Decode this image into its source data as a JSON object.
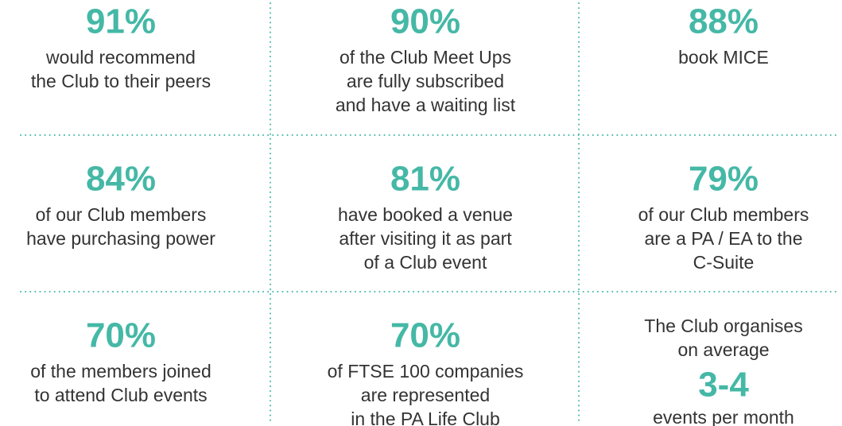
{
  "cells": [
    {
      "stat": "91%",
      "lines": [
        "would recommend",
        "the Club to their peers"
      ]
    },
    {
      "stat": "90%",
      "lines": [
        "of the Club Meet Ups",
        "are fully subscribed",
        "and have a waiting list"
      ]
    },
    {
      "stat": "88%",
      "lines": [
        "book MICE"
      ]
    },
    {
      "stat": "84%",
      "lines": [
        "of our Club members",
        "have purchasing power"
      ]
    },
    {
      "stat": "81%",
      "lines": [
        "have booked a venue",
        "after visiting it as part",
        "of a Club event"
      ]
    },
    {
      "stat": "79%",
      "lines": [
        "of our Club members",
        "are a PA / EA to the",
        "C-Suite"
      ]
    },
    {
      "stat": "70%",
      "lines": [
        "of the members joined",
        "to attend Club events"
      ]
    },
    {
      "stat": "70%",
      "lines": [
        "of FTSE 100 companies",
        "are represented",
        "in the PA Life Club"
      ]
    },
    {
      "lines_before": [
        "The Club organises",
        "on average"
      ],
      "stat": "3-4",
      "lines": [
        "events per month"
      ]
    }
  ]
}
